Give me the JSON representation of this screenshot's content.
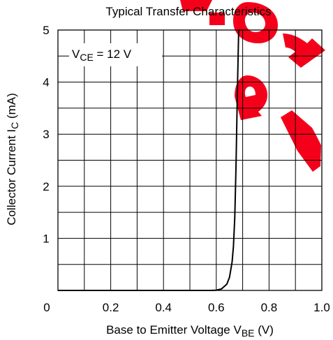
{
  "chart_data": {
    "type": "line",
    "title": "Typical Transfer Characteristics",
    "xlabel": {
      "main": "Base to Emitter Voltage  V",
      "sub": "BE",
      "unit": "  (V)"
    },
    "ylabel": {
      "main": "Collector Current  I",
      "sub": "C",
      "unit": "  (mA)"
    },
    "annotation": {
      "main": "V",
      "sub": "CE",
      "rest": " = 12 V"
    },
    "xlim": [
      0,
      1.0
    ],
    "ylim": [
      0,
      5
    ],
    "x_ticks": [
      {
        "value": 0,
        "label": "0"
      },
      {
        "value": 0.2,
        "label": "0.2"
      },
      {
        "value": 0.4,
        "label": "0.4"
      },
      {
        "value": 0.6,
        "label": "0.6"
      },
      {
        "value": 0.8,
        "label": "0.8"
      },
      {
        "value": 1.0,
        "label": "1.0"
      }
    ],
    "y_ticks": [
      {
        "value": 1,
        "label": "1"
      },
      {
        "value": 2,
        "label": "2"
      },
      {
        "value": 3,
        "label": "3"
      },
      {
        "value": 4,
        "label": "4"
      },
      {
        "value": 5,
        "label": "5"
      }
    ],
    "grid": true,
    "grid_x_step": 0.1,
    "grid_y_step": 0.5,
    "series": [
      {
        "color": "#000000",
        "x": [
          0.0,
          0.58,
          0.6,
          0.62,
          0.64,
          0.65,
          0.66,
          0.665,
          0.67,
          0.675,
          0.68,
          0.685
        ],
        "y": [
          0.0,
          0.0,
          0.005,
          0.03,
          0.12,
          0.25,
          0.55,
          0.85,
          1.4,
          2.4,
          3.8,
          5.0
        ]
      }
    ],
    "watermark": {
      "text": "new",
      "color": "#f5001a"
    }
  }
}
